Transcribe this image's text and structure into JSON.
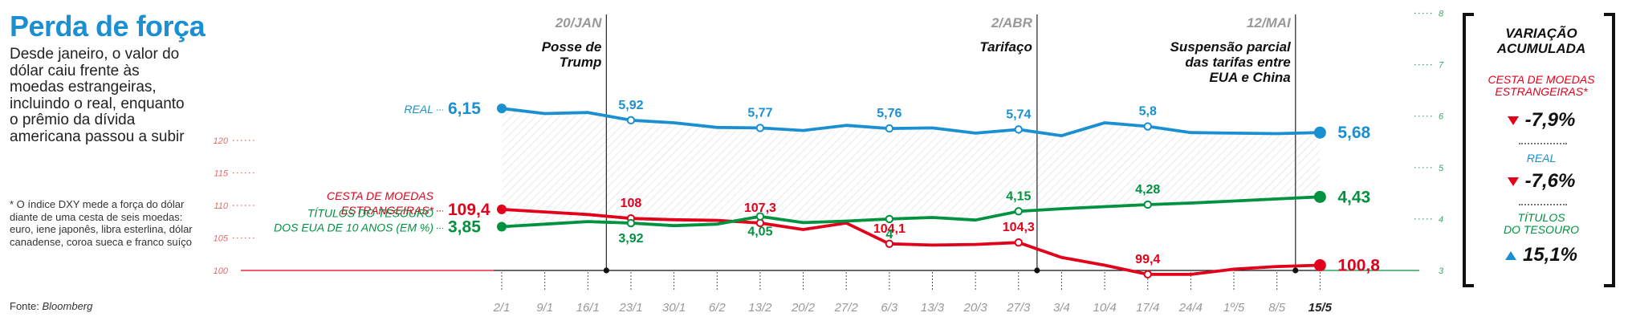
{
  "header": {
    "title": "Perda de força",
    "subtitle": "Desde janeiro, o valor do dólar caiu frente às moedas estrangeiras, incluindo o real, enquanto o prêmio da dívida americana passou a subir",
    "footnote": "* O índice DXY mede a força do dólar diante de uma cesta de seis moedas: euro, iene japonês, libra esterlina, dólar canadense, coroa sueca e franco suíço",
    "source_label": "Fonte:",
    "source_name": "Bloomberg"
  },
  "colors": {
    "real": "#1a8fd1",
    "dxy": "#e2001a",
    "treasury": "#00923f",
    "event": "#333333",
    "axis_text": "#999999"
  },
  "chart_data": {
    "type": "line",
    "x": [
      "2/1",
      "9/1",
      "16/1",
      "23/1",
      "30/1",
      "6/2",
      "13/2",
      "20/2",
      "27/2",
      "6/3",
      "13/3",
      "20/3",
      "27/3",
      "3/4",
      "10/4",
      "17/4",
      "24/4",
      "1º/5",
      "8/5",
      "15/5"
    ],
    "left_axis": {
      "ticks": [
        100,
        105,
        110,
        115,
        120
      ],
      "range": [
        100,
        120
      ]
    },
    "right_axis": {
      "ticks": [
        3,
        4,
        5,
        6,
        7,
        8
      ],
      "range": [
        3,
        8
      ]
    },
    "series": [
      {
        "key": "real",
        "name_line1": "REAL",
        "name_line2": "",
        "axis": "right",
        "start_label": "6,15",
        "end_label": "5,68",
        "values": [
          6.15,
          6.05,
          6.07,
          5.92,
          5.87,
          5.78,
          5.77,
          5.72,
          5.82,
          5.76,
          5.77,
          5.67,
          5.74,
          5.62,
          5.87,
          5.8,
          5.68,
          5.67,
          5.66,
          5.68
        ],
        "point_labels": [
          null,
          null,
          null,
          "5,92",
          null,
          null,
          "5,77",
          null,
          null,
          "5,76",
          null,
          null,
          "5,74",
          null,
          null,
          "5,8",
          null,
          null,
          null,
          null
        ]
      },
      {
        "key": "dxy",
        "name_line1": "CESTA DE MOEDAS",
        "name_line2": "ESTRANGEIRAS*",
        "axis": "left",
        "start_label": "109,4",
        "end_label": "100,8",
        "values": [
          109.4,
          109.0,
          108.6,
          108.0,
          107.8,
          107.7,
          107.3,
          106.3,
          107.3,
          104.1,
          103.9,
          104.0,
          104.3,
          102.0,
          100.8,
          99.4,
          99.4,
          100.2,
          100.6,
          100.8
        ],
        "point_labels": [
          null,
          null,
          null,
          "108",
          null,
          null,
          "107,3",
          null,
          null,
          "104,1",
          null,
          null,
          "104,3",
          null,
          null,
          "99,4",
          null,
          null,
          null,
          null
        ]
      },
      {
        "key": "treasury",
        "name_line1": "TÍTULOS DO TESOURO",
        "name_line2": "DOS EUA DE 10 ANOS (EM %)",
        "axis": "right",
        "start_label": "3,85",
        "end_label": "4,43",
        "values": [
          3.85,
          3.9,
          3.95,
          3.92,
          3.87,
          3.9,
          4.05,
          3.93,
          3.96,
          4.0,
          4.03,
          3.98,
          4.15,
          4.2,
          4.24,
          4.28,
          4.31,
          4.35,
          4.39,
          4.43
        ],
        "point_labels": [
          null,
          null,
          null,
          "3,92",
          null,
          null,
          "4,05",
          null,
          null,
          "4",
          null,
          null,
          "4,15",
          null,
          null,
          "4,28",
          null,
          null,
          null,
          null
        ]
      }
    ],
    "events": [
      {
        "after_index": 2,
        "date": "20/JAN",
        "line1": "Posse de",
        "line2": "Trump",
        "line3": "",
        "line4": ""
      },
      {
        "after_index": 12,
        "date": "2/ABR",
        "line1": "Tarifaço",
        "line2": "",
        "line3": "",
        "line4": ""
      },
      {
        "after_index": 18,
        "date": "12/MAI",
        "line1": "Suspensão parcial",
        "line2": "das tarifas entre",
        "line3": "EUA e China",
        "line4": ""
      }
    ]
  },
  "sidebar": {
    "title_line1": "VARIAÇÃO",
    "title_line2": "ACUMULADA",
    "dxy_label_line1": "CESTA DE MOEDAS",
    "dxy_label_line2": "ESTRANGEIRAS*",
    "dxy_value": "-7,9%",
    "real_label": "REAL",
    "real_value": "-7,6%",
    "treasury_label_line1": "TÍTULOS",
    "treasury_label_line2": "DO TESOURO",
    "treasury_value": "15,1%"
  }
}
